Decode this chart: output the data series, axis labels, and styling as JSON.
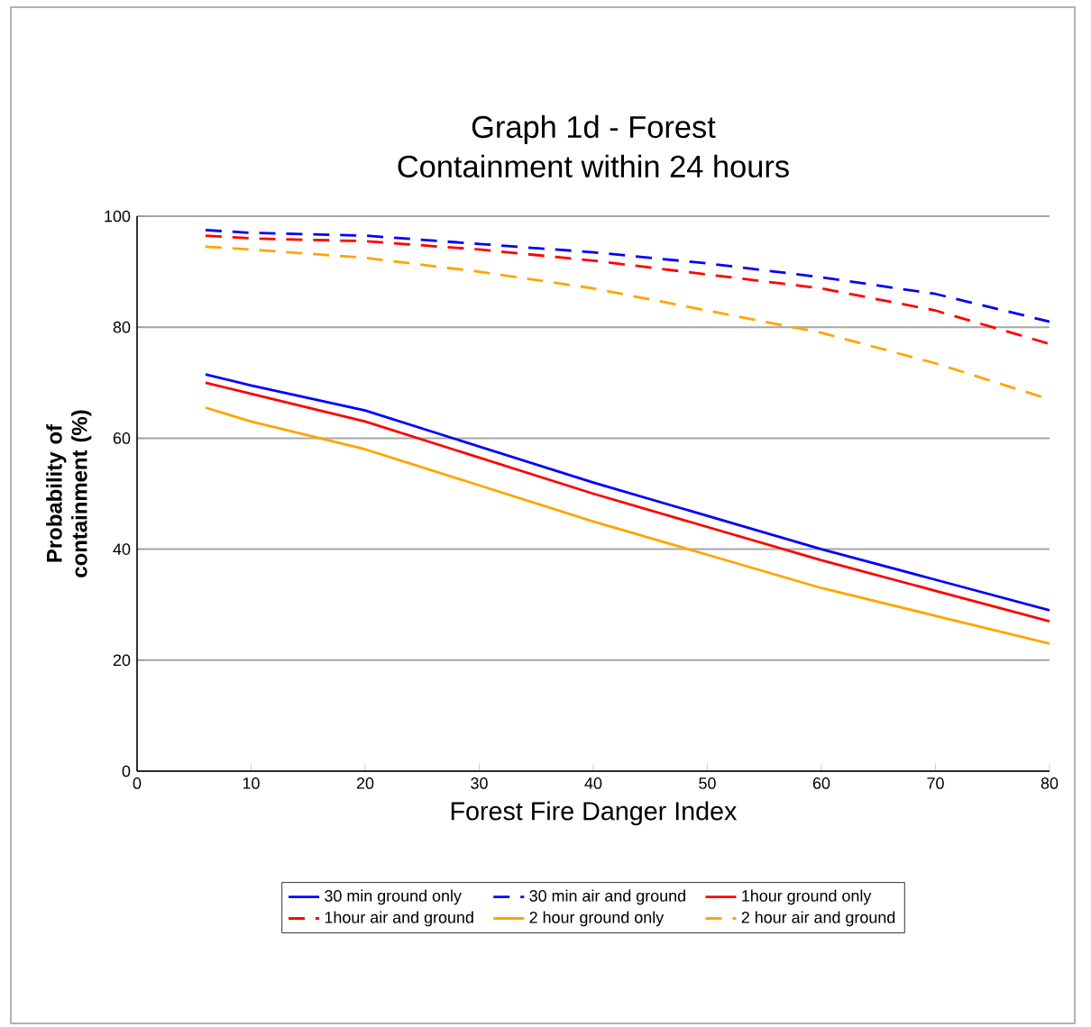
{
  "chart_data": {
    "type": "line",
    "title": "Graph 1d - Forest",
    "subtitle": "Containment within 24 hours",
    "xlabel": "Forest Fire Danger Index",
    "ylabel": "Probability of containment (%)",
    "xlim": [
      0,
      80
    ],
    "xticks": [
      0,
      10,
      20,
      30,
      40,
      50,
      60,
      70,
      80
    ],
    "ylim": [
      0,
      100
    ],
    "yticks": [
      0,
      20,
      40,
      60,
      80,
      100
    ],
    "grid": "y",
    "legend": "bottom",
    "marker": "none",
    "x": [
      6,
      10,
      20,
      30,
      40,
      50,
      60,
      70,
      80
    ],
    "series": [
      {
        "name": "30 min ground only",
        "color": "#0000ff",
        "line_style": "solid",
        "values": [
          71.5,
          69.5,
          65,
          58.5,
          52,
          46,
          40,
          34.5,
          29
        ]
      },
      {
        "name": "30 min air and ground",
        "color": "#0000ff",
        "line_style": "dashed",
        "values": [
          97.5,
          97,
          96.5,
          95,
          93.5,
          91.5,
          89,
          86,
          81
        ]
      },
      {
        "name": "1hour ground only",
        "color": "#ff0000",
        "line_style": "solid",
        "values": [
          70,
          68,
          63,
          56.5,
          50,
          44,
          38,
          32.5,
          27
        ]
      },
      {
        "name": "1hour air and ground",
        "color": "#ff0000",
        "line_style": "dashed",
        "values": [
          96.5,
          96,
          95.5,
          94,
          92,
          89.5,
          87,
          83,
          77
        ]
      },
      {
        "name": "2 hour ground only",
        "color": "#ffa500",
        "line_style": "solid",
        "values": [
          65.5,
          63,
          58,
          51.5,
          45,
          39,
          33,
          28,
          23
        ]
      },
      {
        "name": "2 hour air and ground",
        "color": "#ffa500",
        "line_style": "dashed",
        "values": [
          94.5,
          94,
          92.5,
          90,
          87,
          83,
          79,
          73.5,
          67
        ]
      }
    ]
  }
}
